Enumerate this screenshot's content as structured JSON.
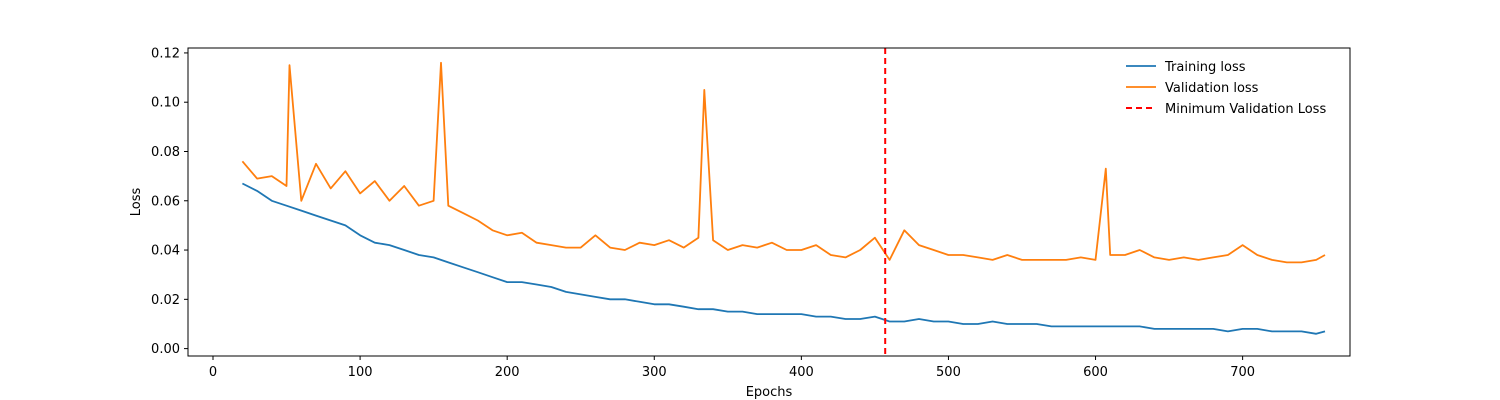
{
  "chart_data": {
    "type": "line",
    "title": "",
    "xlabel": "Epochs",
    "ylabel": "Loss",
    "xlim": [
      -17,
      773
    ],
    "ylim": [
      -0.003,
      0.122
    ],
    "xticks": [
      0,
      100,
      200,
      300,
      400,
      500,
      600,
      700
    ],
    "yticks": [
      0.0,
      0.02,
      0.04,
      0.06,
      0.08,
      0.1,
      0.12
    ],
    "ytick_format": "0.00",
    "grid": false,
    "legend_position": "top-right",
    "series": [
      {
        "name": "Training loss",
        "color": "#1f77b4",
        "style": "solid",
        "x": [
          20,
          30,
          40,
          50,
          60,
          70,
          80,
          90,
          100,
          110,
          120,
          130,
          140,
          150,
          160,
          170,
          180,
          190,
          200,
          210,
          220,
          230,
          240,
          250,
          260,
          270,
          280,
          290,
          300,
          310,
          320,
          330,
          340,
          350,
          360,
          370,
          380,
          390,
          400,
          410,
          420,
          430,
          440,
          450,
          460,
          470,
          480,
          490,
          500,
          510,
          520,
          530,
          540,
          550,
          560,
          570,
          580,
          590,
          600,
          610,
          620,
          630,
          640,
          650,
          660,
          670,
          680,
          690,
          700,
          710,
          720,
          730,
          740,
          750,
          756
        ],
        "y": [
          0.067,
          0.064,
          0.06,
          0.058,
          0.056,
          0.054,
          0.052,
          0.05,
          0.046,
          0.043,
          0.042,
          0.04,
          0.038,
          0.037,
          0.035,
          0.033,
          0.031,
          0.029,
          0.027,
          0.027,
          0.026,
          0.025,
          0.023,
          0.022,
          0.021,
          0.02,
          0.02,
          0.019,
          0.018,
          0.018,
          0.017,
          0.016,
          0.016,
          0.015,
          0.015,
          0.014,
          0.014,
          0.014,
          0.014,
          0.013,
          0.013,
          0.012,
          0.012,
          0.013,
          0.011,
          0.011,
          0.012,
          0.011,
          0.011,
          0.01,
          0.01,
          0.011,
          0.01,
          0.01,
          0.01,
          0.009,
          0.009,
          0.009,
          0.009,
          0.009,
          0.009,
          0.009,
          0.008,
          0.008,
          0.008,
          0.008,
          0.008,
          0.007,
          0.008,
          0.008,
          0.007,
          0.007,
          0.007,
          0.006,
          0.007
        ]
      },
      {
        "name": "Validation loss",
        "color": "#ff7f0e",
        "style": "solid",
        "x": [
          20,
          30,
          40,
          50,
          52,
          60,
          70,
          80,
          90,
          100,
          110,
          120,
          130,
          140,
          150,
          155,
          160,
          170,
          180,
          190,
          200,
          210,
          220,
          230,
          240,
          250,
          260,
          270,
          280,
          290,
          300,
          310,
          320,
          330,
          334,
          340,
          350,
          360,
          370,
          380,
          390,
          400,
          410,
          420,
          430,
          440,
          450,
          460,
          470,
          480,
          490,
          500,
          510,
          520,
          530,
          540,
          550,
          560,
          570,
          580,
          590,
          600,
          607,
          610,
          620,
          630,
          640,
          650,
          660,
          670,
          680,
          690,
          700,
          710,
          720,
          730,
          740,
          750,
          756
        ],
        "y": [
          0.076,
          0.069,
          0.07,
          0.066,
          0.115,
          0.06,
          0.075,
          0.065,
          0.072,
          0.063,
          0.068,
          0.06,
          0.066,
          0.058,
          0.06,
          0.116,
          0.058,
          0.055,
          0.052,
          0.048,
          0.046,
          0.047,
          0.043,
          0.042,
          0.041,
          0.041,
          0.046,
          0.041,
          0.04,
          0.043,
          0.042,
          0.044,
          0.041,
          0.045,
          0.105,
          0.044,
          0.04,
          0.042,
          0.041,
          0.043,
          0.04,
          0.04,
          0.042,
          0.038,
          0.037,
          0.04,
          0.045,
          0.036,
          0.048,
          0.042,
          0.04,
          0.038,
          0.038,
          0.037,
          0.036,
          0.038,
          0.036,
          0.036,
          0.036,
          0.036,
          0.037,
          0.036,
          0.073,
          0.038,
          0.038,
          0.04,
          0.037,
          0.036,
          0.037,
          0.036,
          0.037,
          0.038,
          0.042,
          0.038,
          0.036,
          0.035,
          0.035,
          0.036,
          0.038
        ]
      },
      {
        "name": "Minimum Validation Loss",
        "color": "#ff0000",
        "style": "dashed",
        "vline_x": 457
      }
    ]
  }
}
